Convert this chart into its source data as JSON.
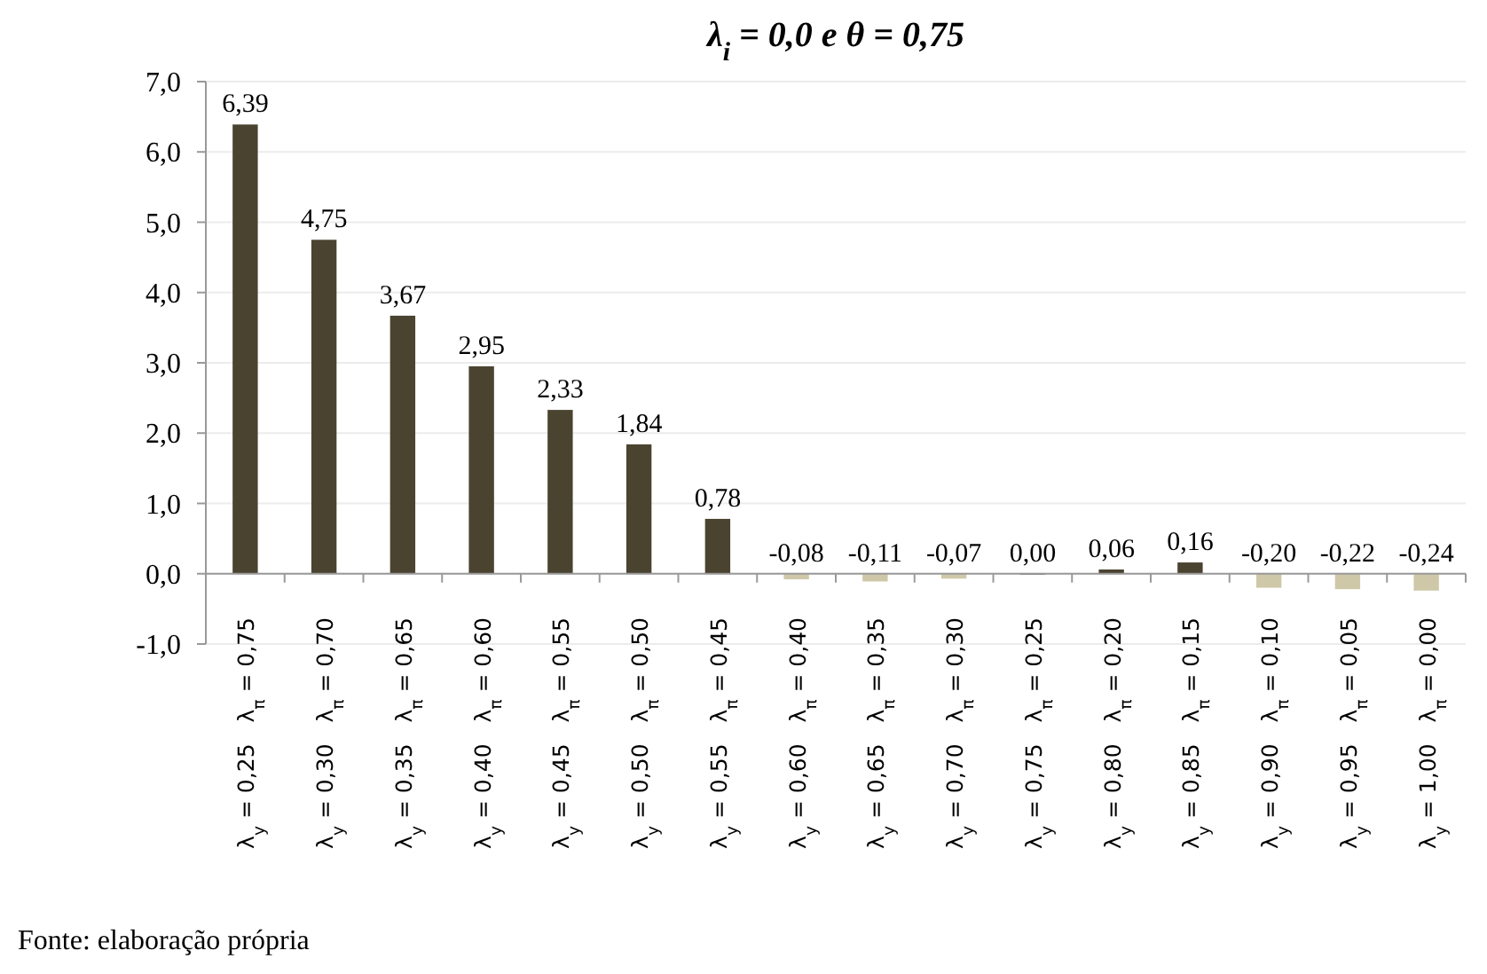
{
  "chart_data": {
    "type": "bar",
    "title": "λ$_{i}$ = 0,0 e θ = 0,75",
    "categories": [
      "λ$_{y}$ = 0,25   λ$_{π}$ = 0,75",
      "λ$_{y}$ = 0,30   λ$_{π}$ = 0,70",
      "λ$_{y}$ = 0,35   λ$_{π}$ = 0,65",
      "λ$_{y}$ = 0,40   λ$_{π}$ = 0,60",
      "λ$_{y}$ = 0,45   λ$_{π}$ = 0,55",
      "λ$_{y}$ = 0,50   λ$_{π}$ = 0,50",
      "λ$_{y}$ = 0,55   λ$_{π}$ = 0,45",
      "λ$_{y}$ = 0,60   λ$_{π}$ = 0,40",
      "λ$_{y}$ = 0,65   λ$_{π}$ = 0,35",
      "λ$_{y}$ = 0,70   λ$_{π}$ = 0,30",
      "λ$_{y}$ = 0,75   λ$_{π}$ = 0,25",
      "λ$_{y}$ = 0,80   λ$_{π}$ = 0,20",
      "λ$_{y}$ = 0,85   λ$_{π}$ = 0,15",
      "λ$_{y}$ = 0,90   λ$_{π}$ = 0,10",
      "λ$_{y}$ = 0,95   λ$_{π}$ = 0,05",
      "λ$_{y}$ = 1,00   λ$_{π}$ = 0,00"
    ],
    "values": [
      6.39,
      4.75,
      3.67,
      2.95,
      2.33,
      1.84,
      0.78,
      -0.08,
      -0.11,
      -0.07,
      0.0,
      0.06,
      0.16,
      -0.2,
      -0.22,
      -0.24
    ],
    "value_labels": [
      "6,39",
      "4,75",
      "3,67",
      "2,95",
      "2,33",
      "1,84",
      "0,78",
      "-0,08",
      "-0,11",
      "-0,07",
      "0,00",
      "0,06",
      "0,16",
      "-0,20",
      "-0,22",
      "-0,24"
    ],
    "colors": [
      "#4a4330",
      "#4a4330",
      "#4a4330",
      "#4a4330",
      "#4a4330",
      "#4a4330",
      "#4a4330",
      "#cfc8a8",
      "#cfc8a8",
      "#cfc8a8",
      "#4a4330",
      "#4a4330",
      "#4a4330",
      "#cfc8a8",
      "#cfc8a8",
      "#cfc8a8"
    ],
    "ylim": [
      -1,
      7
    ],
    "yticks": [
      {
        "value": -1,
        "label": "-1,0"
      },
      {
        "value": 0,
        "label": "0,0"
      },
      {
        "value": 1,
        "label": "1,0"
      },
      {
        "value": 2,
        "label": "2,0"
      },
      {
        "value": 3,
        "label": "3,0"
      },
      {
        "value": 4,
        "label": "4,0"
      },
      {
        "value": 5,
        "label": "5,0"
      },
      {
        "value": 6,
        "label": "6,0"
      },
      {
        "value": 7,
        "label": "7,0"
      }
    ],
    "grid": "y",
    "annotations": [
      "Fonte: elaboração própria"
    ]
  }
}
